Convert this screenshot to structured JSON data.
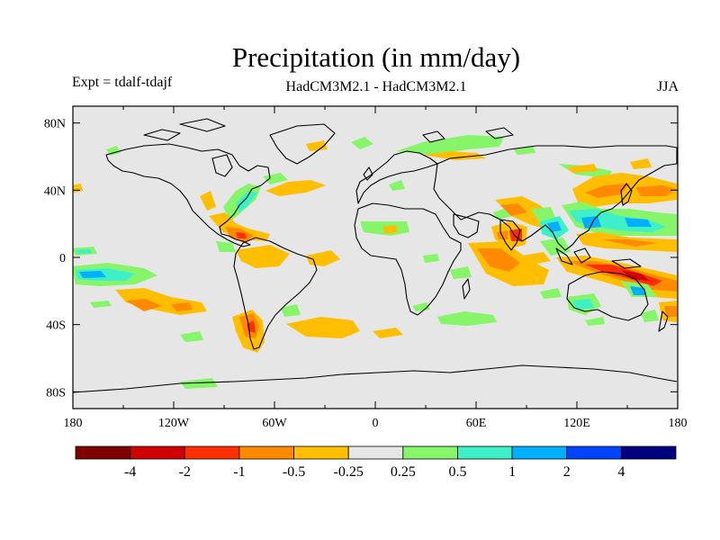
{
  "title": "Precipitation (in mm/day)",
  "subtitle_left": "Expt = tdalf-tdajf",
  "subtitle_center": "HadCM3M2.1 - HadCM3M2.1",
  "subtitle_right": "JJA",
  "lat_labels": [
    "80N",
    "40N",
    "0",
    "40S",
    "80S"
  ],
  "lon_labels": [
    "180",
    "120W",
    "60W",
    "0",
    "60E",
    "120E",
    "180"
  ],
  "colorbar": {
    "colors": [
      "#7f0000",
      "#d00000",
      "#ff3000",
      "#ff8a00",
      "#ffbf00",
      "#e6e6e6",
      "#86f56a",
      "#3df0c8",
      "#00b0ff",
      "#0044ff",
      "#00007f"
    ],
    "labels": [
      "-4",
      "-2",
      "-1",
      "-0.5",
      "-0.25",
      "0.25",
      "0.5",
      "1",
      "2",
      "4"
    ]
  },
  "colors": {
    "ocean": "#e6e6e6",
    "coast": "#000000"
  }
}
